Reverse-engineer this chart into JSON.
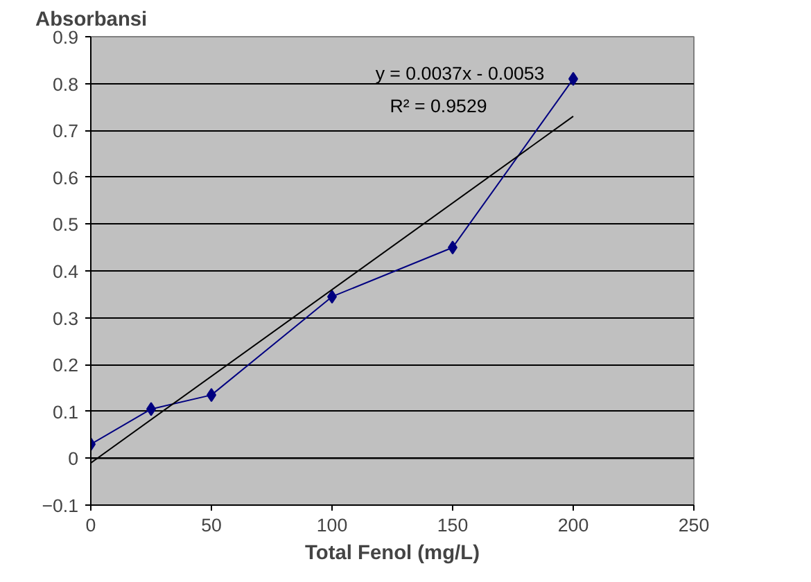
{
  "chart_data": {
    "type": "line",
    "xlabel": "Total Fenol (mg/L)",
    "ylabel": "Absorbansi",
    "x": [
      0,
      25,
      50,
      100,
      150,
      200
    ],
    "series": [
      {
        "color": "#000080",
        "values": [
          0.03,
          0.105,
          0.135,
          0.345,
          0.45,
          0.81
        ],
        "marker": "diamond"
      },
      {
        "color": "#000000",
        "type": "line",
        "x": [
          0,
          200
        ],
        "values": [
          -0.01,
          0.73
        ],
        "marker": "none"
      }
    ],
    "annotations": [
      "y = 0.0037x - 0.0053",
      "R² = 0.9529"
    ],
    "xlim": [
      0,
      250
    ],
    "xticks": [
      0,
      50,
      100,
      150,
      200,
      250
    ],
    "ylim": [
      -0.1,
      0.9
    ],
    "yticks": [
      -0.1,
      0,
      0.1,
      0.2,
      0.3,
      0.4,
      0.5,
      0.6,
      0.7,
      0.8,
      0.9
    ],
    "grid": "y"
  }
}
